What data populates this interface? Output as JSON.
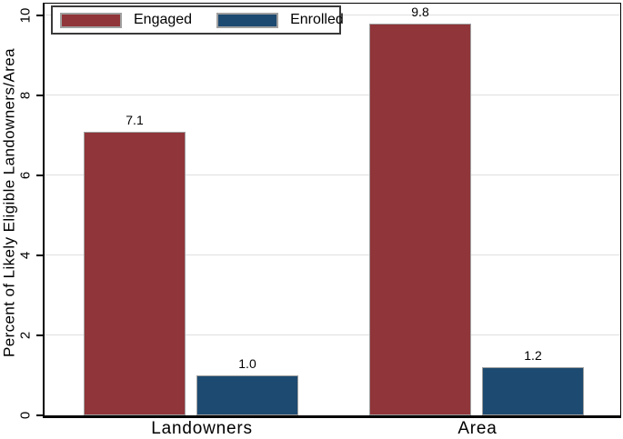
{
  "figure": {
    "background": "#FFFFFF",
    "axis_color": "#000000",
    "text_color": "#000000",
    "grid_color": "#DFDFDF",
    "bar_border_color": "#A0A0A0",
    "legend_border_color": "#3A3A3A",
    "swatch_border_color": "#A0A0A0"
  },
  "chart_data": {
    "type": "bar",
    "categories": [
      "Landowners",
      "Area"
    ],
    "series": [
      {
        "name": "Engaged",
        "color": "#903539",
        "values": [
          7.1,
          9.8
        ],
        "value_labels": [
          "7.1",
          "9.8"
        ]
      },
      {
        "name": "Enrolled",
        "color": "#1D4A70",
        "values": [
          1.0,
          1.2
        ],
        "value_labels": [
          "1.0",
          "1.2"
        ]
      }
    ],
    "title": "",
    "xlabel": "",
    "ylabel": "Percent of Likely Eligible Landowners/Area",
    "yticks": [
      0,
      2,
      4,
      6,
      8,
      10
    ],
    "ylim": [
      0,
      10.3
    ],
    "grid": true,
    "legend_position": "top-left"
  }
}
